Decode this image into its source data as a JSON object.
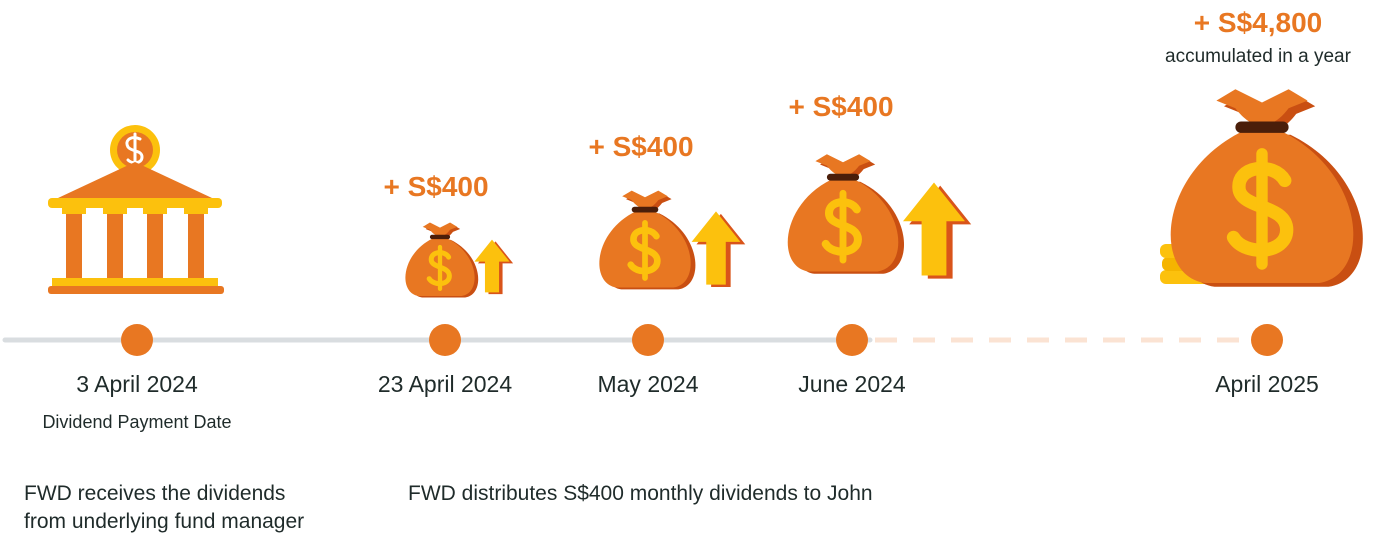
{
  "timeline": [
    {
      "date": "3 April 2024",
      "label": "Dividend Payment Date"
    },
    {
      "date": "23 April 2024",
      "amount": "+ S$400"
    },
    {
      "date": "May 2024",
      "amount": "+ S$400"
    },
    {
      "date": "June 2024",
      "amount": "+ S$400"
    },
    {
      "date": "April 2025",
      "amount": "+ S$4,800",
      "note": "accumulated in a year"
    }
  ],
  "descriptions": [
    {
      "lines": [
        "FWD receives the dividends",
        "from underlying fund manager"
      ]
    },
    {
      "lines": [
        "FWD distributes S$400 monthly dividends to John"
      ]
    }
  ]
}
